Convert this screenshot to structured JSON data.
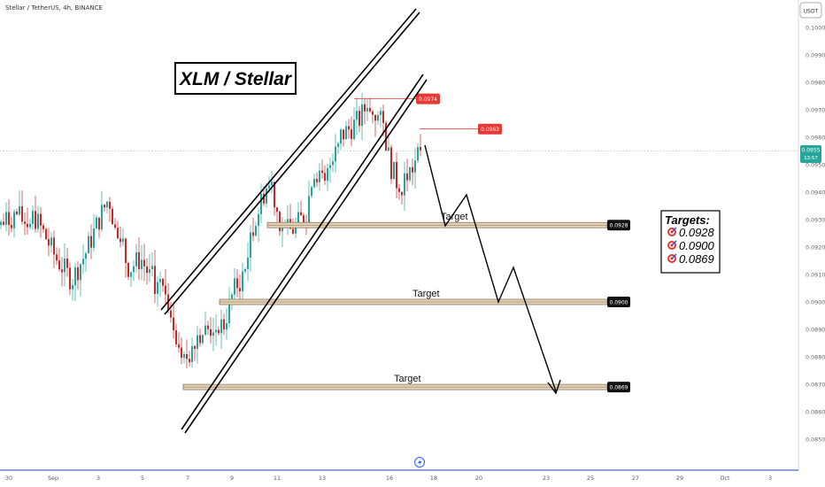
{
  "header": {
    "symbol_info": "Stellar / TetherUS, 4h, BINANCE"
  },
  "currency_label": "USDT",
  "colors": {
    "up": "#26a69a",
    "down": "#c62828",
    "marker_red": "#e53935",
    "current_green": "#26a69a",
    "box_fill": "#e6d2b5",
    "box_stroke": "#7a6b55",
    "axis_blue": "#1e3fb5"
  },
  "chart_data": {
    "type": "candlestick",
    "title": "XLM / Stellar",
    "ylim": [
      0.0845,
      0.101
    ],
    "y_ticks": [
      "0.1000",
      "0.0990",
      "0.0980",
      "0.0970",
      "0.0960",
      "0.0950",
      "0.0940",
      "0.0930",
      "0.0920",
      "0.0910",
      "0.0900",
      "0.0890",
      "0.0880",
      "0.0870",
      "0.0860",
      "0.0850"
    ],
    "x_ticks": [
      "30",
      "Sep",
      "3",
      "5",
      "7",
      "9",
      "11",
      "13",
      "16",
      "18",
      "20",
      "23",
      "25",
      "27",
      "29",
      "Oct",
      "3"
    ],
    "current_price": {
      "value": "0.0955",
      "countdown": "13:57"
    },
    "price_markers": [
      {
        "label": "0.0974"
      },
      {
        "label": "0.0963"
      }
    ],
    "target_levels": [
      {
        "label": "0.0928",
        "caption": "Target"
      },
      {
        "label": "0.0900",
        "caption": "Target"
      },
      {
        "label": "0.0869",
        "caption": "Target"
      }
    ],
    "targets_box": {
      "heading": "Targets:",
      "items": [
        "0.0928",
        "0.0900",
        "0.0869"
      ]
    }
  }
}
